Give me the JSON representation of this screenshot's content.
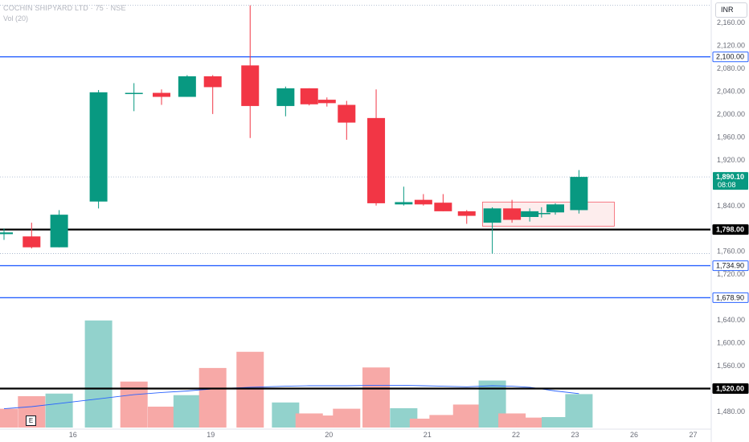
{
  "header": {
    "symbol_title": "COCHIN SHIPYARD LTD · 75 · NSE",
    "volume_label": "Vol (20)",
    "currency": "INR"
  },
  "events_badge": "E",
  "colors": {
    "up": "#089981",
    "down": "#f23645",
    "vol_up": "#92d2cc",
    "vol_down": "#f7a9a7",
    "level_line_blue": "#2962ff",
    "support_line": "#000000",
    "ma_line": "#2962ff",
    "range_box_fill": "#fdecec",
    "range_box_border": "#f23645"
  },
  "chart_data": {
    "type": "candlestick",
    "price_axis": {
      "ticks": [
        2160,
        2120,
        2080,
        2040,
        2000,
        1960,
        1920,
        1880,
        1840,
        1800,
        1760,
        1720,
        1680,
        1640,
        1600,
        1560,
        1520,
        1480
      ],
      "tick_labels": [
        "2,160.00",
        "2,120.00",
        "2,080.00",
        "2,040.00",
        "2,000.00",
        "1,960.00",
        "1,920.00",
        "1,880.00",
        "1,840.00",
        "1,800.00",
        "1,760.00",
        "1,720.00",
        "1,680.00",
        "1,640.00",
        "1,600.00",
        "1,560.00",
        "1,520.00",
        "1,480.00"
      ],
      "range": [
        1460,
        2190
      ]
    },
    "time_axis": {
      "labels": [
        "16",
        "19",
        "20",
        "21",
        "22",
        "23",
        "26",
        "27"
      ],
      "positions_index": [
        3.5,
        10.5,
        16.5,
        21.5,
        26,
        29,
        32,
        35
      ]
    },
    "candles": [
      {
        "o": 1790,
        "h": 1800,
        "l": 1780,
        "c": 1793
      },
      {
        "o": 1786,
        "h": 1810,
        "l": 1765,
        "c": 1767
      },
      {
        "o": 1767,
        "h": 1832,
        "l": 1767,
        "c": 1824
      },
      {
        "o": 1847,
        "h": 2042,
        "l": 1835,
        "c": 2038
      },
      {
        "o": 2037,
        "h": 2054,
        "l": 2005,
        "c": 2037
      },
      {
        "o": 2037,
        "h": 2043,
        "l": 2016,
        "c": 2030
      },
      {
        "o": 2030,
        "h": 2068,
        "l": 2030,
        "c": 2066
      },
      {
        "o": 2066,
        "h": 2068,
        "l": 2000,
        "c": 2047
      },
      {
        "o": 2085,
        "h": 2190,
        "l": 1958,
        "c": 2014
      },
      {
        "o": 2014,
        "h": 2048,
        "l": 1996,
        "c": 2045
      },
      {
        "o": 2045,
        "h": 2045,
        "l": 2015,
        "c": 2017
      },
      {
        "o": 2025,
        "h": 2029,
        "l": 2013,
        "c": 2019
      },
      {
        "o": 2016,
        "h": 2023,
        "l": 1955,
        "c": 1985
      },
      {
        "o": 1993,
        "h": 2043,
        "l": 1840,
        "c": 1844
      },
      {
        "o": 1842,
        "h": 1873,
        "l": 1840,
        "c": 1846
      },
      {
        "o": 1850,
        "h": 1860,
        "l": 1840,
        "c": 1842
      },
      {
        "o": 1845,
        "h": 1860,
        "l": 1830,
        "c": 1830
      },
      {
        "o": 1830,
        "h": 1832,
        "l": 1808,
        "c": 1822
      },
      {
        "o": 1810,
        "h": 1837,
        "l": 1756,
        "c": 1835
      },
      {
        "o": 1835,
        "h": 1850,
        "l": 1810,
        "c": 1815
      },
      {
        "o": 1820,
        "h": 1835,
        "l": 1812,
        "c": 1830
      },
      {
        "o": 1826,
        "h": 1837,
        "l": 1819,
        "c": 1827
      },
      {
        "o": 1828,
        "h": 1844,
        "l": 1824,
        "c": 1842
      },
      {
        "o": 1832,
        "h": 1902,
        "l": 1826,
        "c": 1890.1
      }
    ],
    "candle_x_index": [
      0,
      1.4,
      2.8,
      4.8,
      6.6,
      8,
      9.3,
      10.6,
      12.5,
      14.3,
      15.5,
      16.4,
      17.4,
      18.9,
      20.3,
      21.3,
      22.3,
      23.5,
      24.8,
      25.8,
      26.7,
      27.3,
      28,
      29.2
    ],
    "volume": {
      "bars": [
        {
          "v": 36,
          "dir": "down"
        },
        {
          "v": 60,
          "dir": "down"
        },
        {
          "v": 65,
          "dir": "up"
        },
        {
          "v": 205,
          "dir": "up"
        },
        {
          "v": 88,
          "dir": "down"
        },
        {
          "v": 40,
          "dir": "down"
        },
        {
          "v": 62,
          "dir": "up"
        },
        {
          "v": 114,
          "dir": "down"
        },
        {
          "v": 145,
          "dir": "down"
        },
        {
          "v": 48,
          "dir": "up"
        },
        {
          "v": 27,
          "dir": "down"
        },
        {
          "v": 23,
          "dir": "down"
        },
        {
          "v": 36,
          "dir": "down"
        },
        {
          "v": 115,
          "dir": "down"
        },
        {
          "v": 37,
          "dir": "up"
        },
        {
          "v": 17,
          "dir": "down"
        },
        {
          "v": 24,
          "dir": "down"
        },
        {
          "v": 44,
          "dir": "down"
        },
        {
          "v": 90,
          "dir": "up"
        },
        {
          "v": 27,
          "dir": "down"
        },
        {
          "v": 19,
          "dir": "down"
        },
        {
          "v": 9,
          "dir": "down"
        },
        {
          "v": 20,
          "dir": "up"
        },
        {
          "v": 64,
          "dir": "up"
        }
      ],
      "ma20": [
        36,
        40,
        46,
        55,
        63,
        67,
        70,
        74,
        77,
        79,
        80,
        80,
        80,
        81,
        81,
        80,
        79,
        78,
        80,
        79,
        77,
        74,
        70,
        65
      ]
    },
    "horizontal_levels": [
      {
        "price": 2100.0,
        "label": "2,100.00",
        "style": "blue"
      },
      {
        "price": 1798.0,
        "label": "1,798.00",
        "style": "black"
      },
      {
        "price": 1734.9,
        "label": "1,734.90",
        "style": "blue"
      },
      {
        "price": 1678.9,
        "label": "1,678.90",
        "style": "blue"
      },
      {
        "price": 1520.0,
        "label": "1,520.00",
        "style": "black"
      }
    ],
    "last_price": {
      "price": 1890.1,
      "label": "1,890.10",
      "countdown": "08:08"
    },
    "range_box": {
      "from_index": 24.3,
      "to_index": 31.0,
      "top": 1846,
      "bottom": 1804
    },
    "dotted_reference_levels": [
      2190,
      1890.1,
      1756
    ]
  }
}
